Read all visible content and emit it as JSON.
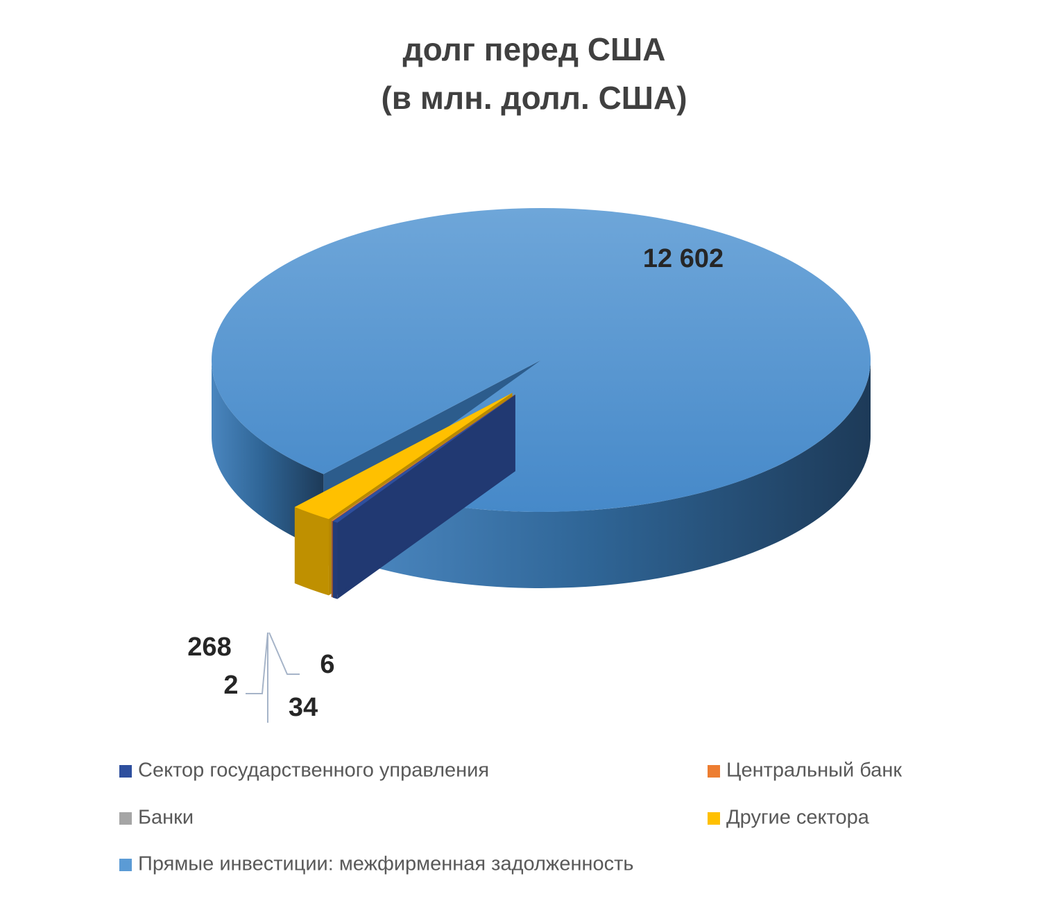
{
  "chart_data": {
    "type": "pie3d",
    "title": "долг перед США",
    "subtitle": "(в млн. долл. США)",
    "series": [
      {
        "name": "Сектор государственного управления",
        "color": "#2e4f9e"
      },
      {
        "name": "Центральный банк",
        "color": "#ed7d31"
      },
      {
        "name": "Банки",
        "color": "#a5a5a5"
      },
      {
        "name": "Другие сектора",
        "color": "#ffc000"
      },
      {
        "name": "Прямые инвестиции: межфирменная задолженность",
        "color": "#5b9bd5"
      }
    ],
    "values": [
      34,
      6,
      2,
      268,
      12602
    ],
    "value_labels": [
      "34",
      "6",
      "2",
      "268",
      "12 602"
    ]
  }
}
